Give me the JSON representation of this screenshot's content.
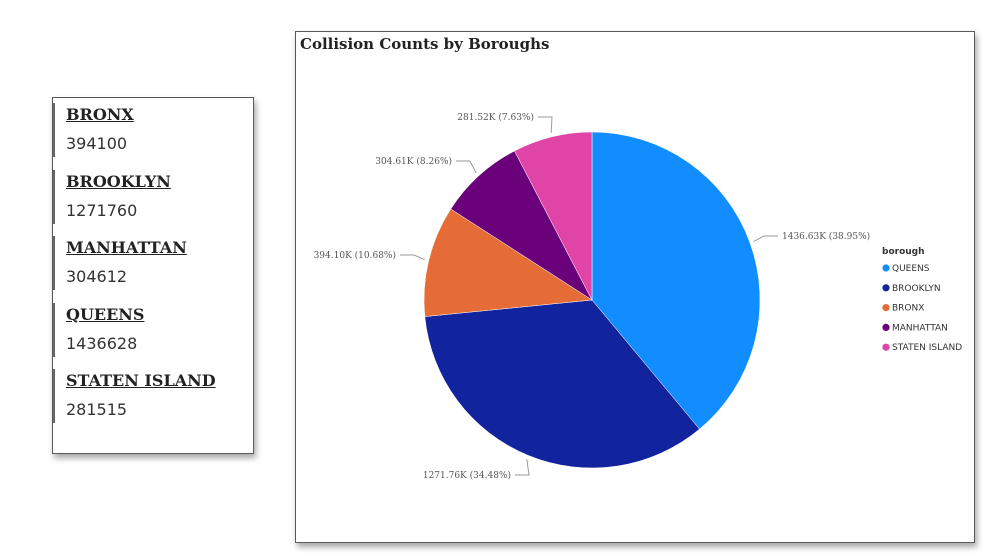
{
  "card": {
    "items": [
      {
        "label": "BRONX",
        "value": "394100"
      },
      {
        "label": "BROOKLYN",
        "value": "1271760"
      },
      {
        "label": "MANHATTAN",
        "value": "304612"
      },
      {
        "label": "QUEENS",
        "value": "1436628"
      },
      {
        "label": "STATEN ISLAND",
        "value": "281515"
      }
    ]
  },
  "chart_data": {
    "type": "pie",
    "title": "Collision Counts by Boroughs",
    "legend_title": "borough",
    "legend_position": "right",
    "slices": [
      {
        "name": "QUEENS",
        "value": 1436628,
        "label": "1436.63K (38.95%)",
        "color": "#118DFF"
      },
      {
        "name": "BROOKLYN",
        "value": 1271760,
        "label": "1271.76K (34.48%)",
        "color": "#12239E"
      },
      {
        "name": "BRONX",
        "value": 394100,
        "label": "394.10K (10.68%)",
        "color": "#E66C37"
      },
      {
        "name": "MANHATTAN",
        "value": 304612,
        "label": "304.61K (8.26%)",
        "color": "#6B007B"
      },
      {
        "name": "STATEN ISLAND",
        "value": 281515,
        "label": "281.52K (7.63%)",
        "color": "#E044A7"
      }
    ]
  }
}
